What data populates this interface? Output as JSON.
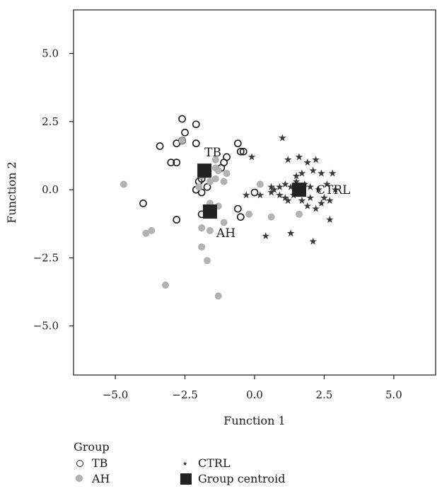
{
  "chart_data": {
    "type": "scatter",
    "xlabel": "Function 1",
    "ylabel": "Function 2",
    "xlim": [
      -6.5,
      6.5
    ],
    "ylim": [
      -6.8,
      6.6
    ],
    "xticks": [
      -5.0,
      -2.5,
      0.0,
      2.5,
      5.0
    ],
    "yticks": [
      5.0,
      2.5,
      0.0,
      -2.5,
      -5.0
    ],
    "xtick_labels": [
      "−5.0",
      "−2.5",
      "0.0",
      "2.5",
      "5.0"
    ],
    "ytick_labels": [
      "5.0",
      "2.5",
      "0.0",
      "−2.5",
      "−5.0"
    ],
    "grid": false,
    "legend": {
      "title": "Group",
      "placement": "bottom",
      "entries": [
        {
          "key": "TB",
          "label": "TB"
        },
        {
          "key": "CTRL",
          "label": "CTRL"
        },
        {
          "key": "AH",
          "label": "AH"
        },
        {
          "key": "centroid",
          "label": "Group centroid"
        }
      ]
    },
    "series": [
      {
        "name": "TB",
        "marker": "open-circle",
        "color": "#1a1a1a",
        "points": [
          [
            -2.6,
            2.6
          ],
          [
            -2.1,
            2.4
          ],
          [
            -2.5,
            2.1
          ],
          [
            -2.8,
            1.7
          ],
          [
            -2.6,
            1.8
          ],
          [
            -3.4,
            1.6
          ],
          [
            -2.1,
            1.7
          ],
          [
            -0.6,
            1.7
          ],
          [
            -0.5,
            1.4
          ],
          [
            -0.4,
            1.4
          ],
          [
            -1.0,
            1.2
          ],
          [
            -1.1,
            1.0
          ],
          [
            -1.2,
            0.8
          ],
          [
            -3.0,
            1.0
          ],
          [
            -2.8,
            1.0
          ],
          [
            -1.9,
            0.4
          ],
          [
            -2.0,
            0.3
          ],
          [
            -2.1,
            0.0
          ],
          [
            -1.9,
            -0.1
          ],
          [
            -4.0,
            -0.5
          ],
          [
            -0.6,
            -0.7
          ],
          [
            -0.5,
            -1.0
          ],
          [
            -2.8,
            -1.1
          ],
          [
            -1.9,
            -0.9
          ],
          [
            -1.5,
            -0.8
          ],
          [
            0.0,
            -0.1
          ],
          [
            -1.7,
            0.1
          ]
        ]
      },
      {
        "name": "AH",
        "marker": "filled-circle",
        "color": "#b3b3b3",
        "points": [
          [
            -4.7,
            0.2
          ],
          [
            -2.6,
            1.8
          ],
          [
            -1.4,
            1.1
          ],
          [
            -1.4,
            0.8
          ],
          [
            -1.3,
            0.7
          ],
          [
            -1.0,
            0.6
          ],
          [
            -1.4,
            0.4
          ],
          [
            -1.1,
            0.3
          ],
          [
            -1.6,
            0.3
          ],
          [
            -1.9,
            0.5
          ],
          [
            -2.0,
            0.1
          ],
          [
            -0.2,
            -0.9
          ],
          [
            0.2,
            0.2
          ],
          [
            -1.3,
            -0.6
          ],
          [
            -3.9,
            -1.6
          ],
          [
            -3.7,
            -1.5
          ],
          [
            -1.9,
            -1.4
          ],
          [
            -1.6,
            -1.5
          ],
          [
            -1.1,
            -1.2
          ],
          [
            -1.9,
            -2.1
          ],
          [
            -1.7,
            -2.6
          ],
          [
            -3.2,
            -3.5
          ],
          [
            -1.3,
            -3.9
          ],
          [
            0.6,
            -1.0
          ],
          [
            1.6,
            -0.9
          ],
          [
            -1.6,
            -0.5
          ]
        ]
      },
      {
        "name": "CTRL",
        "marker": "star",
        "color": "#3a3a3a",
        "points": [
          [
            1.0,
            1.9
          ],
          [
            -0.1,
            1.2
          ],
          [
            1.2,
            1.1
          ],
          [
            1.6,
            1.2
          ],
          [
            1.9,
            1.0
          ],
          [
            2.2,
            1.1
          ],
          [
            1.7,
            0.6
          ],
          [
            2.1,
            0.7
          ],
          [
            2.4,
            0.6
          ],
          [
            2.8,
            0.6
          ],
          [
            0.6,
            0.1
          ],
          [
            0.9,
            0.1
          ],
          [
            1.1,
            0.2
          ],
          [
            1.3,
            0.1
          ],
          [
            1.5,
            0.3
          ],
          [
            1.8,
            0.2
          ],
          [
            2.0,
            0.1
          ],
          [
            2.3,
            0.0
          ],
          [
            2.6,
            0.2
          ],
          [
            2.9,
            0.0
          ],
          [
            0.2,
            -0.2
          ],
          [
            0.6,
            -0.1
          ],
          [
            1.1,
            -0.3
          ],
          [
            1.4,
            -0.2
          ],
          [
            1.7,
            -0.4
          ],
          [
            2.0,
            -0.3
          ],
          [
            2.4,
            -0.5
          ],
          [
            2.7,
            -0.4
          ],
          [
            -0.3,
            -0.2
          ],
          [
            1.2,
            -0.4
          ],
          [
            2.2,
            -0.7
          ],
          [
            2.7,
            -1.1
          ],
          [
            0.4,
            -1.7
          ],
          [
            1.3,
            -1.6
          ],
          [
            2.1,
            -1.9
          ],
          [
            1.9,
            -0.6
          ],
          [
            0.7,
            0.0
          ],
          [
            1.5,
            0.5
          ],
          [
            2.5,
            -0.3
          ],
          [
            0.9,
            -0.2
          ]
        ]
      }
    ],
    "centroids": [
      {
        "name": "TB",
        "label": "TB",
        "x": -1.8,
        "y": 0.7,
        "label_position": "above"
      },
      {
        "name": "AH",
        "label": "AH",
        "x": -1.6,
        "y": -0.8,
        "label_position": "below-right"
      },
      {
        "name": "CTRL",
        "label": "CTRL",
        "x": 1.6,
        "y": 0.0,
        "label_position": "right"
      }
    ]
  }
}
